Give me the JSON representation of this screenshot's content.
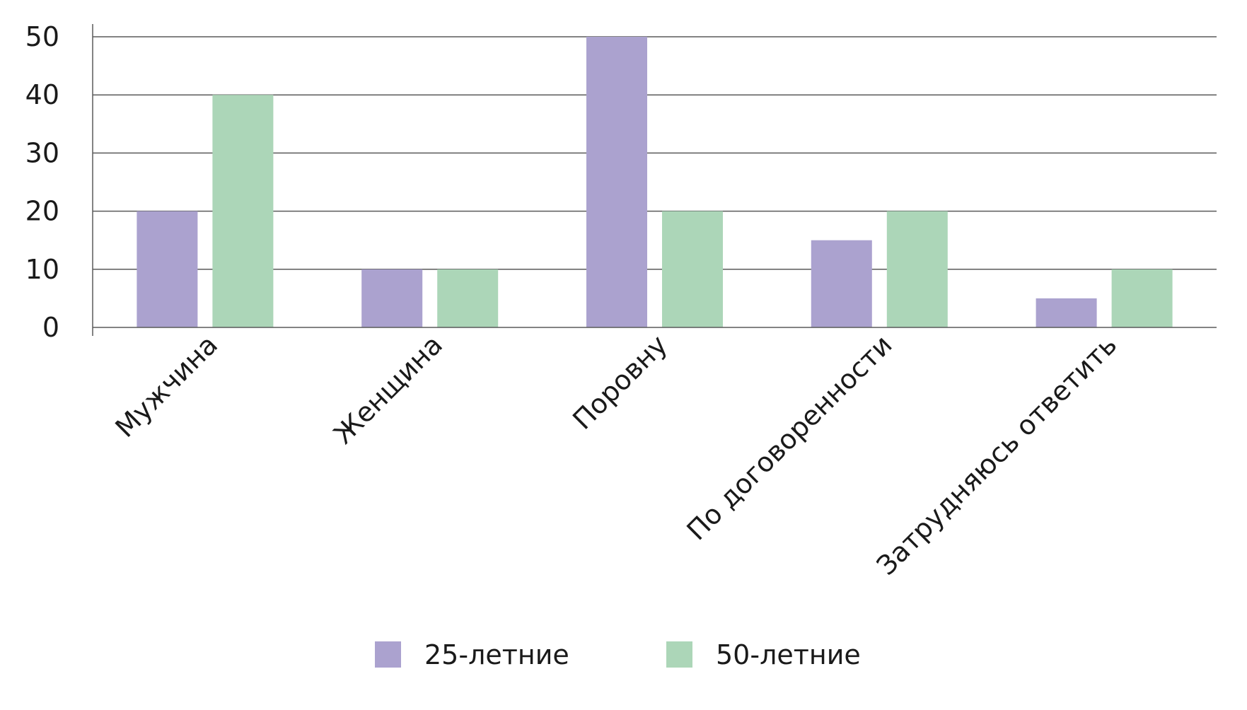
{
  "chart_data": {
    "type": "bar",
    "title": "",
    "xlabel": "",
    "ylabel": "",
    "categories": [
      "Мужчина",
      "Женщина",
      "Поровну",
      "По договоренности",
      "Затрудняюсь ответить"
    ],
    "series": [
      {
        "name": "25-летние",
        "values": [
          20,
          10,
          50,
          15,
          5
        ],
        "color": "#aba2cf"
      },
      {
        "name": "50-летние",
        "values": [
          40,
          10,
          20,
          20,
          10
        ],
        "color": "#acd6b8"
      }
    ],
    "ylim": [
      0,
      50
    ],
    "yticks": [
      0,
      10,
      20,
      30,
      40,
      50
    ],
    "grid": true,
    "legend_position": "bottom"
  }
}
